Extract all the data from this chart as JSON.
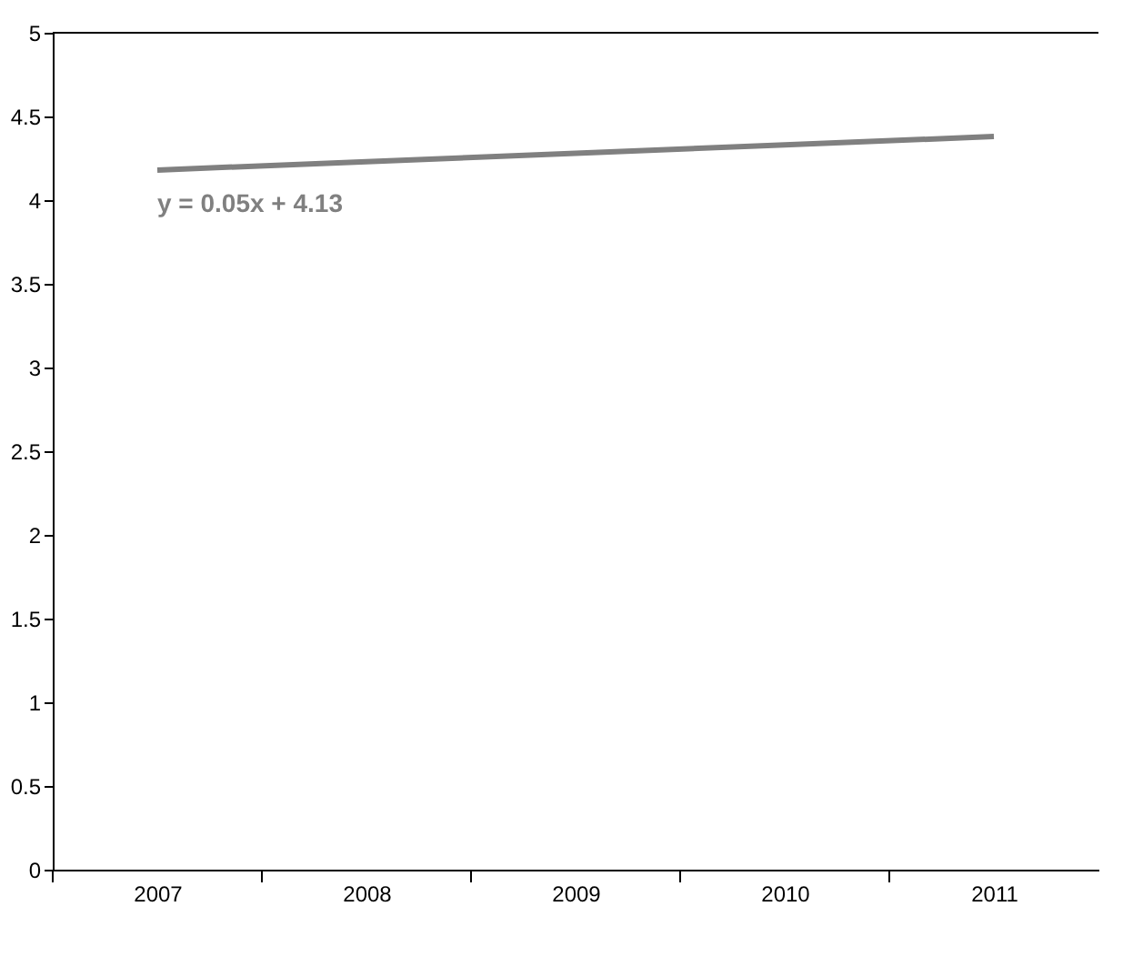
{
  "chart_data": {
    "type": "line",
    "categories": [
      "2007",
      "2008",
      "2009",
      "2010",
      "2011"
    ],
    "series": [
      {
        "color": "#808080",
        "values": [
          4.18,
          4.23,
          4.28,
          4.33,
          4.38
        ]
      }
    ],
    "ylim": [
      0,
      5
    ],
    "yticks": [
      0,
      0.5,
      1,
      1.5,
      2,
      2.5,
      3,
      3.5,
      4,
      4.5,
      5
    ],
    "annotations": [
      "y = 0.05x + 4.13"
    ],
    "grid": false,
    "legend": false,
    "marker": "none",
    "line_style": "solid"
  }
}
